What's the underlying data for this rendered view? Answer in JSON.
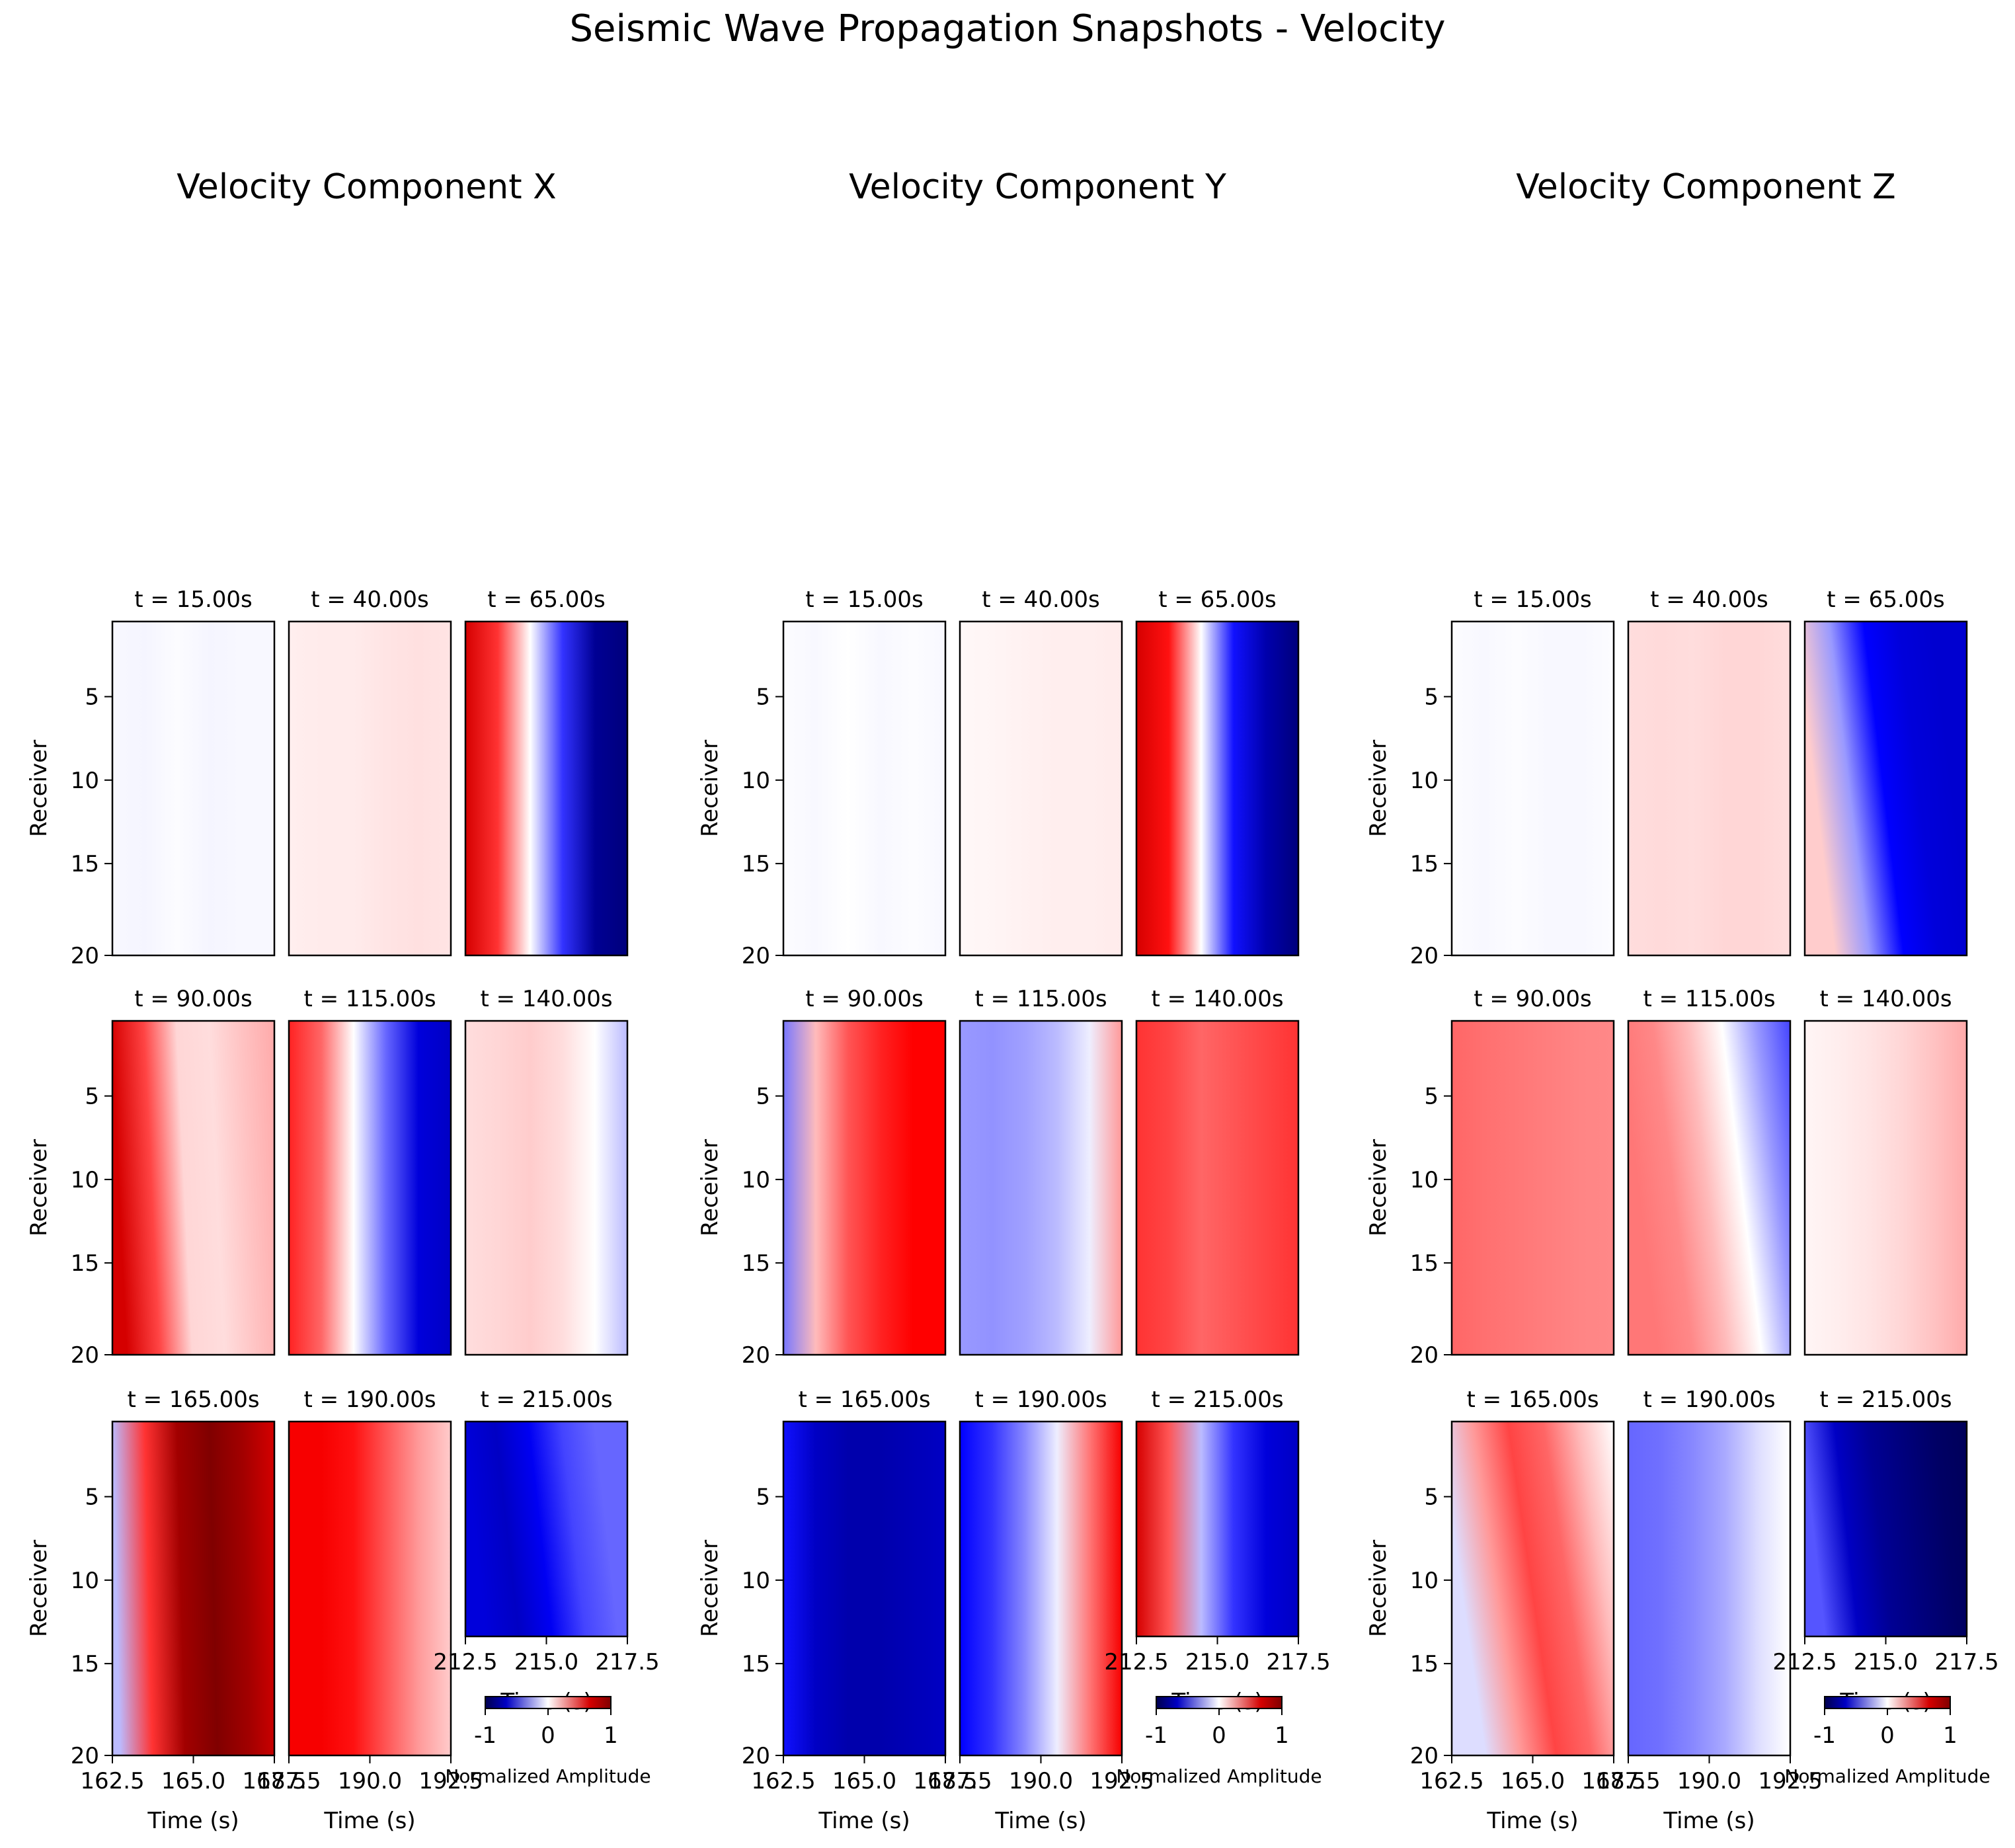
{
  "title": "Seismic Wave Propagation Snapshots - Velocity",
  "colors": {
    "negative_max": "#00004d",
    "negative": "#0000ff",
    "zero": "#ffffff",
    "positive": "#ff0000",
    "positive_max": "#800000"
  },
  "chart_data": {
    "type": "heatmap",
    "title": "Seismic Wave Propagation Snapshots - Velocity",
    "colormap": "seismic",
    "colorbar": {
      "label": "Normalized Amplitude",
      "range": [
        -1,
        1
      ],
      "ticks": [
        "-1",
        "0",
        "1"
      ]
    },
    "y_axis": {
      "label": "Receiver",
      "ticks": [
        "5",
        "10",
        "15",
        "20"
      ],
      "inverted": true,
      "range": [
        1,
        20
      ]
    },
    "x_axis": {
      "label": "Time (s)",
      "tick_labels_col1": [
        "162.5",
        "165.0",
        "167.5"
      ],
      "tick_labels_col2": [
        "187.5",
        "190.0",
        "192.5"
      ],
      "tick_labels_col3": [
        "212.5",
        "215.0",
        "217.5"
      ]
    },
    "components": [
      {
        "name": "Velocity Component X",
        "snapshots": [
          {
            "label": "t = 15.00s",
            "profile": [
              -0.02,
              -0.03,
              -0.01,
              -0.03,
              -0.02,
              -0.02
            ],
            "tilt": 0
          },
          {
            "label": "t = 40.00s",
            "profile": [
              0.05,
              0.06,
              0.06,
              0.08,
              0.09,
              0.08
            ],
            "tilt": 0
          },
          {
            "label": "t = 65.00s",
            "profile": [
              1.0,
              0.6,
              0.0,
              -0.6,
              -1.2,
              -1.3
            ],
            "tilt": 0
          },
          {
            "label": "t = 90.00s",
            "profile": [
              1.0,
              0.55,
              0.12,
              0.1,
              0.18,
              0.25
            ],
            "tilt": 0.1
          },
          {
            "label": "t = 115.00s",
            "profile": [
              0.65,
              0.45,
              0.0,
              -0.45,
              -0.9,
              -1.0
            ],
            "tilt": 0
          },
          {
            "label": "t = 140.00s",
            "profile": [
              0.1,
              0.12,
              0.15,
              0.1,
              0.0,
              -0.2
            ],
            "tilt": 0
          },
          {
            "label": "t = 165.00s",
            "profile": [
              -0.2,
              0.6,
              1.3,
              1.5,
              1.3,
              1.0
            ],
            "tilt": 0.05
          },
          {
            "label": "t = 190.00s",
            "profile": [
              0.8,
              0.8,
              0.7,
              0.5,
              0.3,
              0.15
            ],
            "tilt": 0
          },
          {
            "label": "t = 215.00s",
            "profile": [
              -0.9,
              -1.0,
              -0.8,
              -0.55,
              -0.45,
              -0.45
            ],
            "tilt": 0.15
          }
        ]
      },
      {
        "name": "Velocity Component Y",
        "snapshots": [
          {
            "label": "t = 15.00s",
            "profile": [
              -0.01,
              -0.02,
              0.0,
              -0.02,
              -0.01,
              -0.02
            ],
            "tilt": 0
          },
          {
            "label": "t = 40.00s",
            "profile": [
              0.02,
              0.03,
              0.04,
              0.05,
              0.05,
              0.06
            ],
            "tilt": 0
          },
          {
            "label": "t = 65.00s",
            "profile": [
              1.0,
              0.7,
              0.0,
              -0.7,
              -1.1,
              -1.3
            ],
            "tilt": 0
          },
          {
            "label": "t = 90.00s",
            "profile": [
              -0.4,
              0.2,
              0.5,
              0.65,
              0.75,
              0.75
            ],
            "tilt": 0
          },
          {
            "label": "t = 115.00s",
            "profile": [
              -0.3,
              -0.32,
              -0.28,
              -0.2,
              -0.05,
              0.3
            ],
            "tilt": 0
          },
          {
            "label": "t = 140.00s",
            "profile": [
              0.6,
              0.55,
              0.45,
              0.5,
              0.55,
              0.6
            ],
            "tilt": 0
          },
          {
            "label": "t = 165.00s",
            "profile": [
              -0.7,
              -1.0,
              -1.1,
              -1.1,
              -1.05,
              -1.0
            ],
            "tilt": 0
          },
          {
            "label": "t = 190.00s",
            "profile": [
              -0.75,
              -0.6,
              -0.35,
              -0.05,
              0.4,
              0.8
            ],
            "tilt": 0
          },
          {
            "label": "t = 215.00s",
            "profile": [
              1.0,
              0.5,
              -0.2,
              -0.6,
              -0.9,
              -1.0
            ],
            "tilt": 0
          }
        ]
      },
      {
        "name": "Velocity Component Z",
        "snapshots": [
          {
            "label": "t = 15.00s",
            "profile": [
              -0.01,
              -0.02,
              -0.01,
              -0.02,
              -0.02,
              -0.01
            ],
            "tilt": 0
          },
          {
            "label": "t = 40.00s",
            "profile": [
              0.1,
              0.11,
              0.1,
              0.12,
              0.12,
              0.1
            ],
            "tilt": 0
          },
          {
            "label": "t = 65.00s",
            "profile": [
              0.15,
              -0.3,
              -0.75,
              -0.9,
              -0.95,
              -0.95
            ],
            "tilt": 0.25
          },
          {
            "label": "t = 90.00s",
            "profile": [
              0.45,
              0.42,
              0.4,
              0.38,
              0.36,
              0.35
            ],
            "tilt": 0
          },
          {
            "label": "t = 115.00s",
            "profile": [
              0.4,
              0.35,
              0.2,
              0.0,
              -0.3,
              -0.55
            ],
            "tilt": 0.25
          },
          {
            "label": "t = 140.00s",
            "profile": [
              0.03,
              0.05,
              0.08,
              0.12,
              0.18,
              0.25
            ],
            "tilt": 0
          },
          {
            "label": "t = 165.00s",
            "profile": [
              -0.1,
              0.3,
              0.55,
              0.45,
              0.2,
              0.0
            ],
            "tilt": 0.3
          },
          {
            "label": "t = 190.00s",
            "profile": [
              -0.45,
              -0.42,
              -0.35,
              -0.25,
              -0.1,
              0.0
            ],
            "tilt": 0
          },
          {
            "label": "t = 215.00s",
            "profile": [
              -0.5,
              -1.0,
              -1.2,
              -1.3,
              -1.4,
              -1.45
            ],
            "tilt": 0.15
          }
        ]
      }
    ]
  }
}
